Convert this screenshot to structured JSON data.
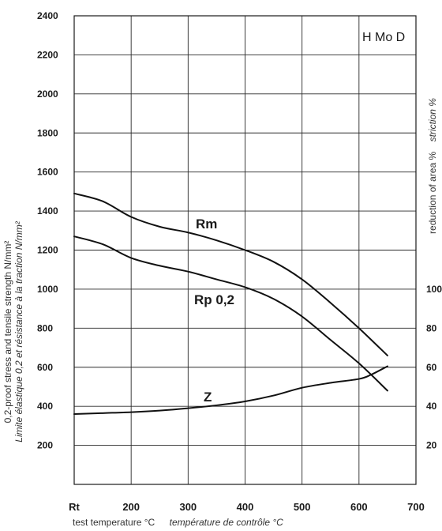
{
  "chart_data": {
    "type": "line",
    "steel_grade": "H Mo D",
    "x": {
      "tick_labels": [
        "Rt",
        "200",
        "300",
        "400",
        "500",
        "600",
        "700"
      ],
      "label_en": "test temperature °C",
      "label_fr": "température de contrôle °C"
    },
    "y_left": {
      "range": [
        0,
        2400
      ],
      "ticks": [
        200,
        400,
        600,
        800,
        1000,
        1200,
        1400,
        1600,
        1800,
        2000,
        2200,
        2400
      ],
      "tick_labels": [
        "200",
        "400",
        "600",
        "800",
        "1000",
        "1200",
        "1400",
        "1600",
        "1800",
        "2000",
        "2200",
        "2400"
      ],
      "label_en": "0,2-proof stress and tensile strength N/mm²",
      "label_fr": "Limite élastique 0,2 et résistance à la traction N/mm²"
    },
    "y_right": {
      "label_en": "reduction of area %",
      "label_fr": "striction %",
      "tick_labels_partial": [
        "100",
        "80",
        "60",
        "40",
        "20"
      ]
    },
    "grid": true,
    "series": [
      {
        "name": "Rm",
        "x": [
          100,
          150,
          200,
          250,
          300,
          350,
          400,
          450,
          500,
          550,
          600,
          650
        ],
        "y": [
          1490,
          1450,
          1370,
          1320,
          1290,
          1250,
          1200,
          1140,
          1050,
          930,
          800,
          660
        ]
      },
      {
        "name": "Rp 0,2",
        "x": [
          100,
          150,
          200,
          250,
          300,
          350,
          400,
          450,
          500,
          550,
          600,
          650
        ],
        "y": [
          1270,
          1230,
          1160,
          1120,
          1090,
          1050,
          1010,
          950,
          860,
          740,
          620,
          480
        ]
      },
      {
        "name": "Z",
        "x": [
          100,
          150,
          200,
          250,
          300,
          350,
          400,
          450,
          500,
          550,
          600,
          620,
          650
        ],
        "y": [
          360,
          365,
          370,
          378,
          390,
          405,
          425,
          455,
          495,
          520,
          540,
          560,
          605
        ]
      }
    ]
  }
}
